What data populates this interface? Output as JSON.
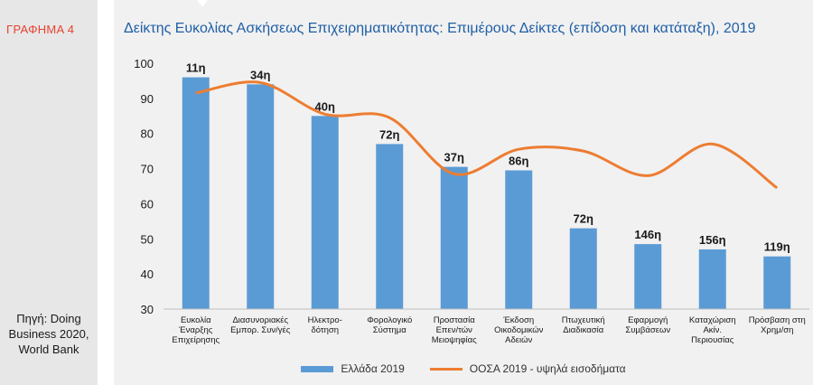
{
  "sidebar": {
    "label": "ΓΡΑΦΗΜΑ 4",
    "source_lines": [
      "Πηγή: Doing",
      "Business 2020,",
      "World Bank"
    ]
  },
  "chart_data": {
    "type": "bar",
    "title": "Δείκτης Ευκολίας Ασκήσεως Επιχειρηματικότητας: Επιμέρους Δείκτες (επίδοση και κατάταξη), 2019",
    "categories": [
      [
        "Ευκολία",
        "Έναρξης",
        "Επιχείρησης"
      ],
      [
        "Διασυνοριακές",
        "Εμπορ. Συν/γές"
      ],
      [
        "Ηλεκτρο-",
        "δότηση"
      ],
      [
        "Φορολογικό",
        "Σύστημα"
      ],
      [
        "Προστασία",
        "Επεν/τών",
        "Μειοψηφίας"
      ],
      [
        "Έκδοση",
        "Οικοδομικών",
        "Αδειών"
      ],
      [
        "Πτωχευτική",
        "Διαδικασία"
      ],
      [
        "Εφαρμογή",
        "Συμβάσεων"
      ],
      [
        "Καταχώριση",
        "Ακίν.",
        "Περιουσίας"
      ],
      [
        "Πρόσβαση στη",
        "Χρημ/ση"
      ]
    ],
    "series": [
      {
        "name": "Ελλάδα 2019",
        "type": "bar",
        "color": "#5b9bd5",
        "values": [
          96.0,
          94.0,
          85.0,
          77.0,
          70.5,
          69.5,
          53.0,
          48.5,
          47.0,
          45.0
        ],
        "rank_labels": [
          "11η",
          "34η",
          "40η",
          "72η",
          "37η",
          "86η",
          "72η",
          "146η",
          "156η",
          "119η"
        ]
      },
      {
        "name": "ΟΟΣΑ 2019 - υψηλά εισοδήματα",
        "type": "line",
        "color": "#ed7d31",
        "values": [
          91.5,
          94.5,
          85.5,
          84.5,
          68.5,
          75.5,
          75.0,
          68.0,
          77.0,
          64.5
        ]
      }
    ],
    "ylim": [
      30,
      100
    ],
    "yticks": [
      30,
      40,
      50,
      60,
      70,
      80,
      90,
      100
    ],
    "grid": false,
    "legend": "bottom-center"
  }
}
